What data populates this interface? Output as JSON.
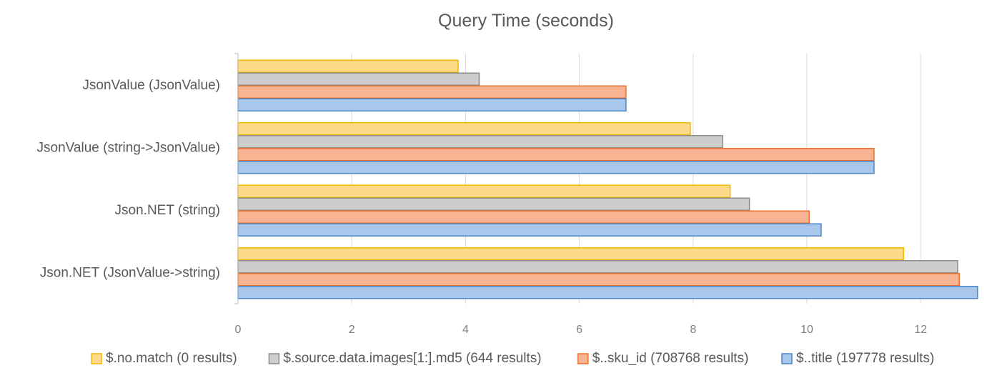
{
  "chart_data": {
    "type": "bar",
    "orientation": "horizontal",
    "title": "Query Time (seconds)",
    "xlabel": "",
    "ylabel": "",
    "xlim": [
      0,
      13
    ],
    "x_ticks": [
      0,
      2,
      4,
      6,
      8,
      10,
      12
    ],
    "grid": true,
    "legend_position": "bottom",
    "categories": [
      "JsonValue (JsonValue)",
      "JsonValue (string->JsonValue)",
      "Json.NET (string)",
      "Json.NET (JsonValue->string)"
    ],
    "series": [
      {
        "name": "$.no.match (0 results)",
        "values": [
          3.87,
          7.95,
          8.65,
          11.7
        ],
        "fill": "#fdd98a",
        "stroke": "#f2b800"
      },
      {
        "name": "$.source.data.images[1:].md5 (644 results)",
        "values": [
          4.24,
          8.52,
          8.99,
          12.65
        ],
        "fill": "#cdcdcd",
        "stroke": "#8c8c8c"
      },
      {
        "name": "$..sku_id (708768 results)",
        "values": [
          6.82,
          11.18,
          10.04,
          12.68
        ],
        "fill": "#f8b393",
        "stroke": "#e8702a"
      },
      {
        "name": "$..title (197778 results)",
        "values": [
          6.82,
          11.18,
          10.25,
          13.0
        ],
        "fill": "#a9c7ea",
        "stroke": "#4a86c8"
      }
    ]
  }
}
